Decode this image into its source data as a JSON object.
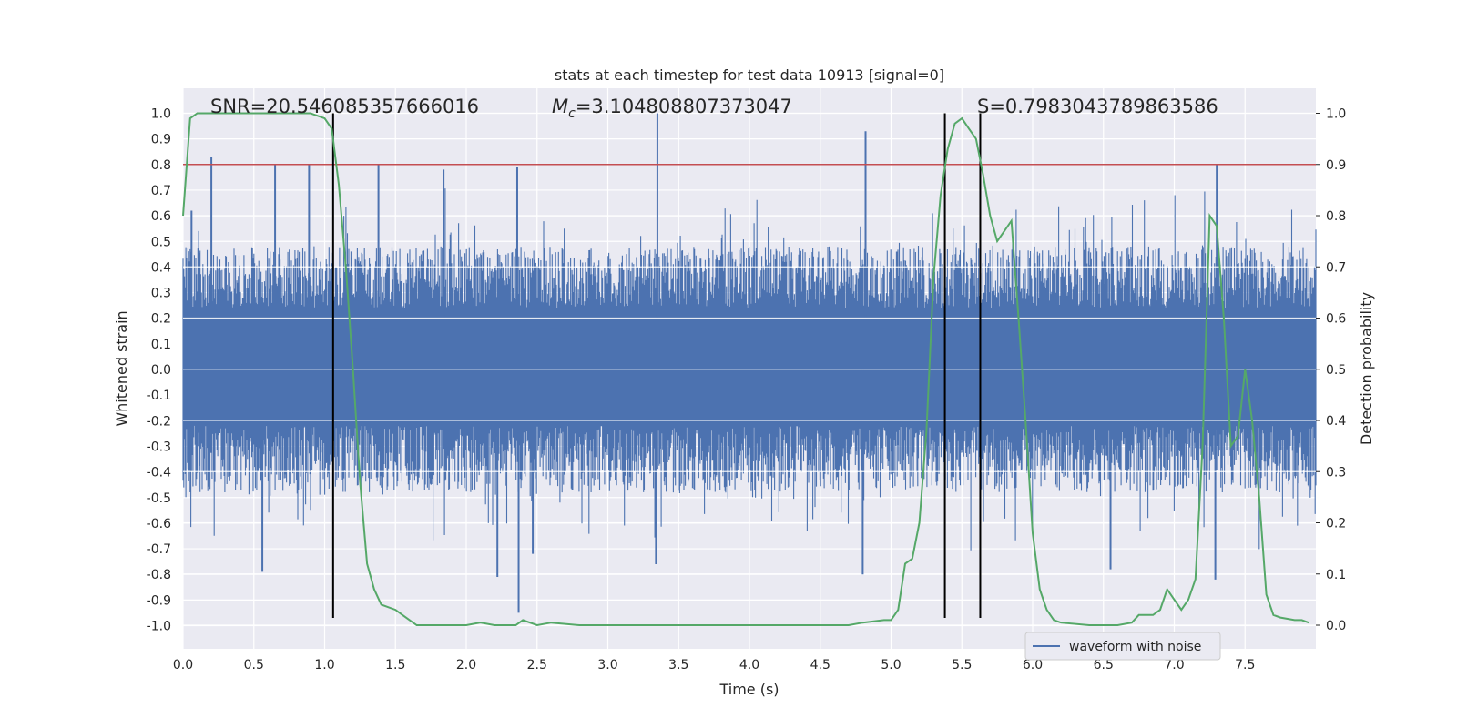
{
  "chart_data": {
    "type": "line",
    "title": "stats at each timestep for test data 10913 [signal=0]",
    "xlabel": "Time (s)",
    "ylabel": "Whitened strain",
    "y2label": "Detection probability",
    "xlim": [
      0,
      8
    ],
    "ylim": [
      -1.05,
      1.1
    ],
    "y2lim": [
      -0.05,
      1.05
    ],
    "xticks": [
      "0.0",
      "0.5",
      "1.0",
      "1.5",
      "2.0",
      "2.5",
      "3.0",
      "3.5",
      "4.0",
      "4.5",
      "5.0",
      "5.5",
      "6.0",
      "6.5",
      "7.0",
      "7.5"
    ],
    "yticks": [
      "1.0",
      "0.9",
      "0.8",
      "0.7",
      "0.6",
      "0.5",
      "0.4",
      "0.3",
      "0.2",
      "0.1",
      "0.0",
      "-0.1",
      "-0.2",
      "-0.3",
      "-0.4",
      "-0.5",
      "-0.6",
      "-0.7",
      "-0.8",
      "-0.9",
      "-1.0"
    ],
    "y2ticks": [
      "1.0",
      "0.9",
      "0.8",
      "0.7",
      "0.6",
      "0.5",
      "0.4",
      "0.3",
      "0.2",
      "0.1",
      "0.0"
    ],
    "annotations": {
      "snr": "SNR=20.546085357666016",
      "mc_symbol": "M",
      "mc_sub": "c",
      "mc_value": "=3.104808807373047",
      "s": "S=0.7983043789863586"
    },
    "threshold_y": 0.8,
    "vertical_lines_x": [
      1.06,
      5.38,
      5.63
    ],
    "series": [
      {
        "name": "waveform with noise",
        "color": "#4c72b0",
        "description": "whitened strain noise, approx. range -0.95 to 1.0, sampled densely over 0-8 s",
        "spikes": [
          [
            0.06,
            0.62
          ],
          [
            0.2,
            0.83
          ],
          [
            0.56,
            -0.79
          ],
          [
            0.65,
            0.8
          ],
          [
            0.89,
            0.8
          ],
          [
            1.38,
            0.8
          ],
          [
            1.84,
            0.78
          ],
          [
            2.22,
            -0.81
          ],
          [
            2.36,
            0.79
          ],
          [
            2.37,
            -0.95
          ],
          [
            2.47,
            -0.72
          ],
          [
            3.35,
            1.0
          ],
          [
            3.34,
            -0.76
          ],
          [
            4.82,
            0.93
          ],
          [
            4.8,
            -0.8
          ],
          [
            6.55,
            -0.78
          ],
          [
            7.29,
            -0.82
          ],
          [
            7.3,
            0.8
          ]
        ]
      },
      {
        "name": "detection probability",
        "color": "#55a868",
        "x": [
          0.0,
          0.05,
          0.1,
          0.15,
          0.3,
          0.6,
          0.9,
          1.0,
          1.05,
          1.1,
          1.15,
          1.2,
          1.25,
          1.3,
          1.35,
          1.4,
          1.5,
          1.55,
          1.6,
          1.65,
          1.8,
          2.0,
          2.1,
          2.2,
          2.3,
          2.35,
          2.4,
          2.5,
          2.6,
          2.8,
          3.0,
          3.5,
          4.0,
          4.5,
          4.7,
          4.8,
          4.95,
          5.0,
          5.05,
          5.1,
          5.15,
          5.2,
          5.25,
          5.3,
          5.35,
          5.4,
          5.45,
          5.5,
          5.55,
          5.6,
          5.65,
          5.7,
          5.75,
          5.8,
          5.85,
          5.9,
          5.95,
          6.0,
          6.05,
          6.1,
          6.15,
          6.2,
          6.4,
          6.5,
          6.6,
          6.7,
          6.75,
          6.8,
          6.85,
          6.9,
          6.95,
          7.0,
          7.05,
          7.1,
          7.15,
          7.2,
          7.25,
          7.3,
          7.35,
          7.4,
          7.45,
          7.5,
          7.55,
          7.6,
          7.65,
          7.7,
          7.75,
          7.85,
          7.9,
          7.95
        ],
        "values": [
          0.8,
          0.99,
          1.0,
          1.0,
          1.0,
          1.0,
          1.0,
          0.99,
          0.97,
          0.86,
          0.7,
          0.5,
          0.28,
          0.12,
          0.07,
          0.04,
          0.03,
          0.02,
          0.01,
          0.0,
          0.0,
          0.0,
          0.005,
          0.0,
          0.0,
          0.0,
          0.01,
          0.0,
          0.005,
          0.0,
          0.0,
          0.0,
          0.0,
          0.0,
          0.0,
          0.005,
          0.01,
          0.01,
          0.03,
          0.12,
          0.13,
          0.2,
          0.38,
          0.68,
          0.84,
          0.93,
          0.98,
          0.99,
          0.97,
          0.95,
          0.88,
          0.8,
          0.75,
          0.77,
          0.79,
          0.6,
          0.4,
          0.18,
          0.07,
          0.03,
          0.01,
          0.005,
          0.0,
          0.0,
          0.0,
          0.005,
          0.02,
          0.02,
          0.02,
          0.03,
          0.07,
          0.05,
          0.03,
          0.05,
          0.09,
          0.35,
          0.8,
          0.78,
          0.6,
          0.35,
          0.37,
          0.5,
          0.4,
          0.25,
          0.06,
          0.02,
          0.015,
          0.01,
          0.01,
          0.005
        ]
      }
    ],
    "legend": [
      "waveform with noise"
    ],
    "legend_position": "lower-right",
    "grid": true,
    "colors": {
      "background": "#eaeaf2",
      "grid": "#ffffff",
      "threshold": "#c44e52",
      "vline": "#000000"
    }
  }
}
